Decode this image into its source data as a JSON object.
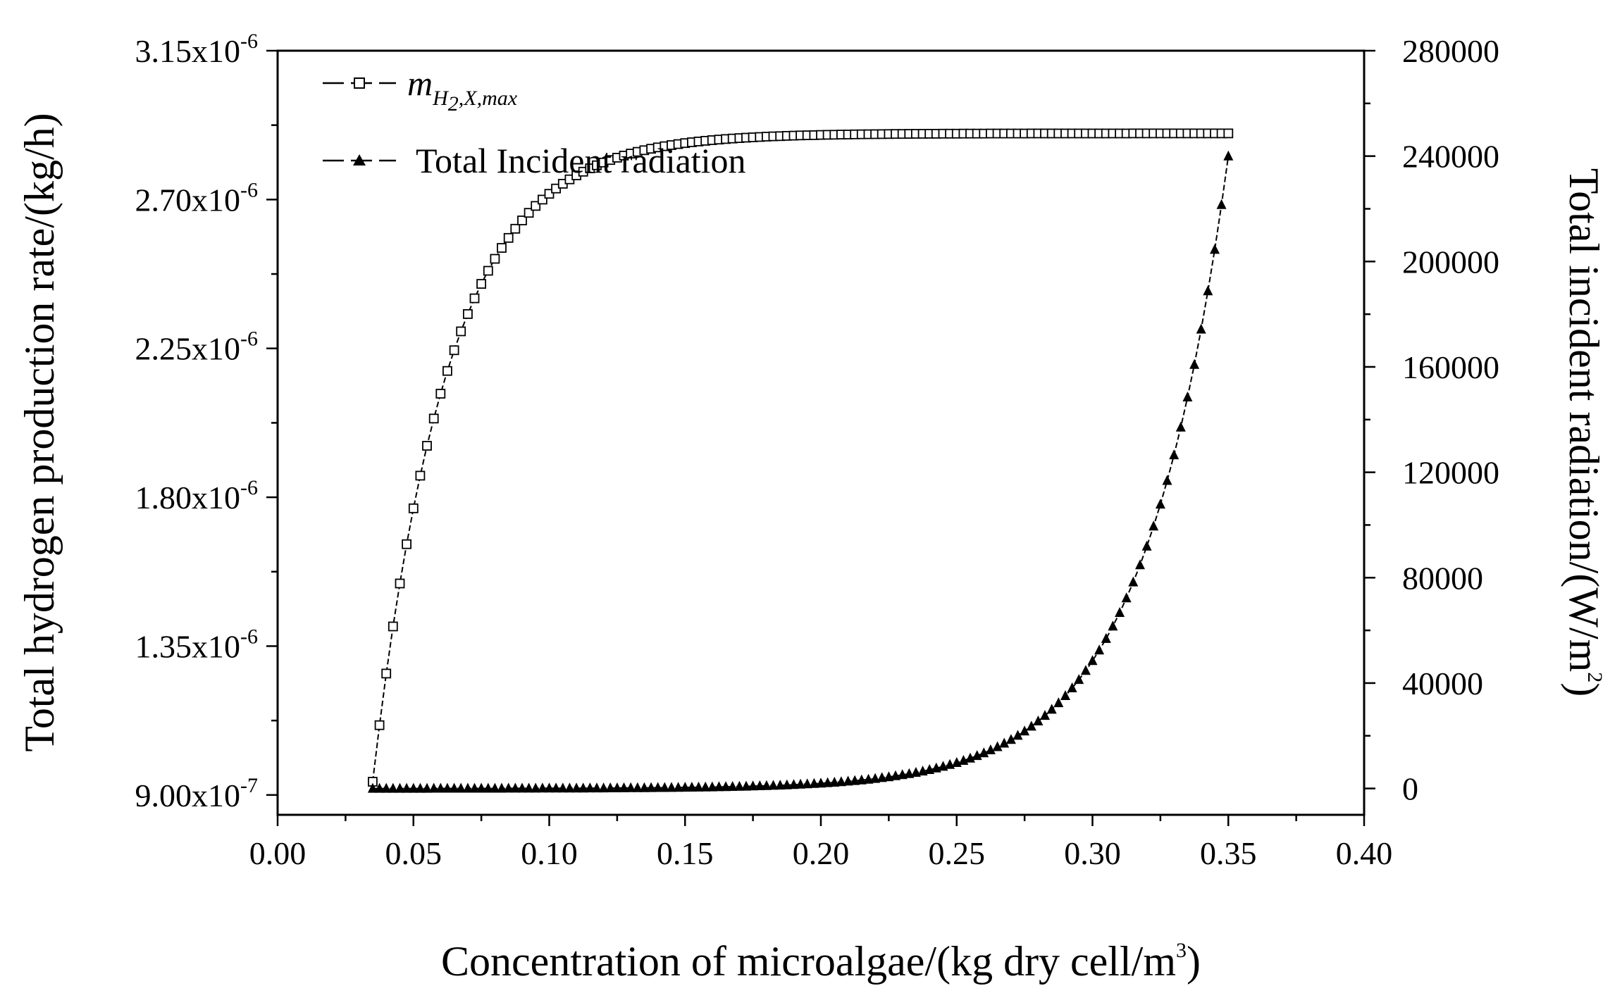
{
  "chart_data": {
    "type": "line",
    "title": "",
    "xlabel": "Concentration of microalgae/(kg dry cell/m",
    "xlabel_sup": "3",
    "xlabel_end": ")",
    "ylabel_left": "Total hydrogen production rate/(kg/h)",
    "ylabel_right": "Total incident radiation/(W/m",
    "ylabel_right_sup": "2",
    "ylabel_right_end": ")",
    "xlim": [
      0.0,
      0.4
    ],
    "x_ticks": [
      0.0,
      0.05,
      0.1,
      0.15,
      0.2,
      0.25,
      0.3,
      0.35,
      0.4
    ],
    "x_tick_labels": [
      "0.00",
      "0.05",
      "0.10",
      "0.15",
      "0.20",
      "0.25",
      "0.30",
      "0.35",
      "0.40"
    ],
    "ylim_left": [
      8.4e-07,
      3.15e-06
    ],
    "y_left_ticks": [
      9e-07,
      1.35e-06,
      1.8e-06,
      2.25e-06,
      2.7e-06,
      3.15e-06
    ],
    "y_left_tick_labels": [
      {
        "mant": "9.00x10",
        "exp": "-7"
      },
      {
        "mant": "1.35x10",
        "exp": "-6"
      },
      {
        "mant": "1.80x10",
        "exp": "-6"
      },
      {
        "mant": "2.25x10",
        "exp": "-6"
      },
      {
        "mant": "2.70x10",
        "exp": "-6"
      },
      {
        "mant": "3.15x10",
        "exp": "-6"
      }
    ],
    "ylim_right": [
      -10000,
      280000
    ],
    "y_right_ticks": [
      0,
      40000,
      80000,
      120000,
      160000,
      200000,
      240000,
      280000
    ],
    "y_right_tick_labels": [
      "0",
      "40000",
      "80000",
      "120000",
      "160000",
      "200000",
      "240000",
      "280000"
    ],
    "legend_position": "top-left",
    "series": [
      {
        "name": "m_H2,X,max",
        "legend_main": "m",
        "legend_sub": "H",
        "legend_subsub": "2",
        "legend_sub_end": ",X,max",
        "axis": "left",
        "marker": "open-square",
        "x_start": 0.035,
        "x_end": 0.35,
        "x_step": 0.0025,
        "y_start": 9.4e-07,
        "y_end": 2.9e-06,
        "decay": 11.5
      },
      {
        "name": "Total Incident radiation",
        "legend_main": "Total Incident radiation",
        "axis": "right",
        "marker": "filled-triangle",
        "x_start": 0.035,
        "x_end": 0.35,
        "x_step": 0.0025,
        "y_start": 0,
        "y_end": 240000,
        "growth": 21.0
      }
    ]
  }
}
